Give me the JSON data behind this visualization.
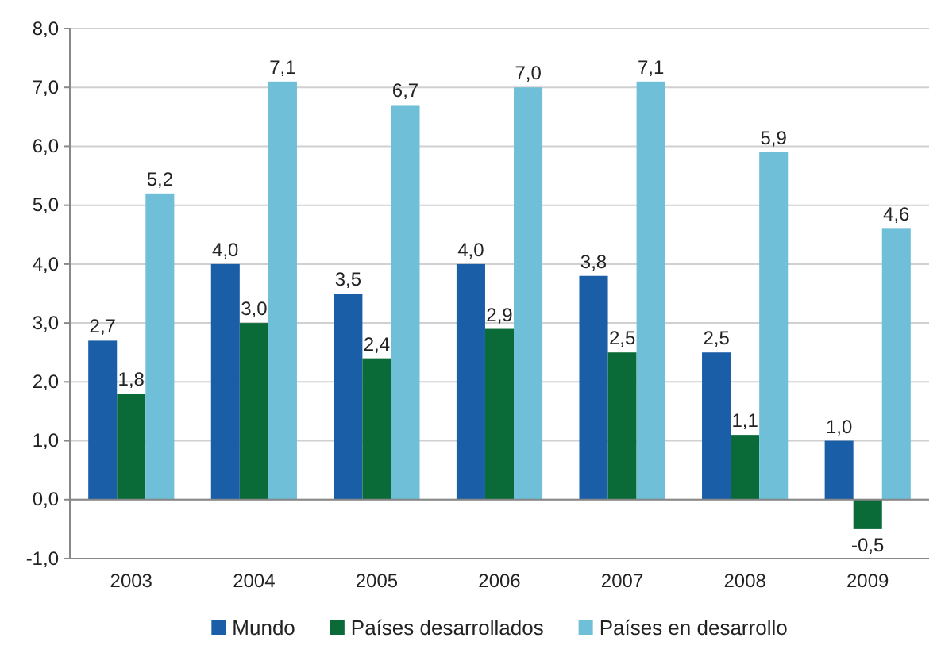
{
  "chart_data": {
    "type": "bar",
    "categories": [
      "2003",
      "2004",
      "2005",
      "2006",
      "2007",
      "2008",
      "2009"
    ],
    "series": [
      {
        "name": "Mundo",
        "color": "#1a5ea8",
        "values": [
          2.7,
          4.0,
          3.5,
          4.0,
          3.8,
          2.5,
          1.0
        ],
        "value_labels": [
          "2,7",
          "4,0",
          "3,5",
          "4,0",
          "3,8",
          "2,5",
          "1,0"
        ]
      },
      {
        "name": "Países desarrollados",
        "color": "#0b6b38",
        "values": [
          1.8,
          3.0,
          2.4,
          2.9,
          2.5,
          1.1,
          -0.5
        ],
        "value_labels": [
          "1,8",
          "3,0",
          "2,4",
          "2,9",
          "2,5",
          "1,1",
          "-0,5"
        ]
      },
      {
        "name": "Países en desarrollo",
        "color": "#6fbfd8",
        "values": [
          5.2,
          7.1,
          6.7,
          7.0,
          7.1,
          5.9,
          4.6
        ],
        "value_labels": [
          "5,2",
          "7,1",
          "6,7",
          "7,0",
          "7,1",
          "5,9",
          "4,6"
        ]
      }
    ],
    "ylim": [
      -1,
      8
    ],
    "yticks": [
      {
        "value": -1,
        "label": "-1,0"
      },
      {
        "value": 0,
        "label": "0,0"
      },
      {
        "value": 1,
        "label": "1,0"
      },
      {
        "value": 2,
        "label": "2,0"
      },
      {
        "value": 3,
        "label": "3,0"
      },
      {
        "value": 4,
        "label": "4,0"
      },
      {
        "value": 5,
        "label": "5,0"
      },
      {
        "value": 6,
        "label": "6,0"
      },
      {
        "value": 7,
        "label": "7,0"
      },
      {
        "value": 8,
        "label": "8,0"
      }
    ],
    "grid": "y",
    "legend": "bottom"
  }
}
